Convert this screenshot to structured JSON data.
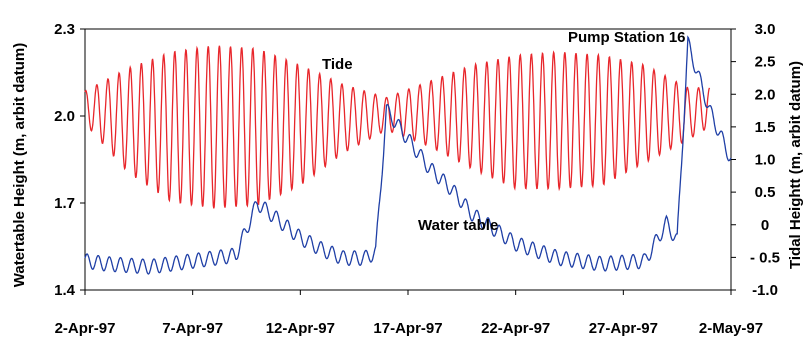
{
  "chart_data": {
    "type": "line",
    "title": "",
    "x_tick_labels": [
      "2-Apr-97",
      "7-Apr-97",
      "12-Apr-97",
      "17-Apr-97",
      "22-Apr-97",
      "27-Apr-97",
      "2-May-97"
    ],
    "xlim": [
      "1997-04-02",
      "1997-05-02"
    ],
    "ylabel_left": "Watertable Height (m, arbit datum)",
    "ylabel_right": "Tidal Heightt (m, arbit datum)",
    "ylim_left": [
      1.4,
      2.3
    ],
    "ylim_right": [
      -1.0,
      3.0
    ],
    "yticks_left": [
      "1.4",
      "1.7",
      "2.0",
      "2.3"
    ],
    "yticks_right": [
      "-1.0",
      "- 0.5",
      "0",
      "0.5",
      "1.0",
      "1.5",
      "2.0",
      "2.5",
      "3.0"
    ],
    "grid": false,
    "legend": "none",
    "annotations": [
      "Tide",
      "Water table",
      "Pump Station 16"
    ],
    "series": [
      {
        "name": "Tide",
        "axis": "right",
        "color": "#e8262b",
        "x": [
          "1997-04-02",
          "1997-04-04",
          "1997-04-06",
          "1997-04-08",
          "1997-04-10",
          "1997-04-12",
          "1997-04-14",
          "1997-04-16",
          "1997-04-18",
          "1997-04-20",
          "1997-04-22",
          "1997-04-24",
          "1997-04-26",
          "1997-04-28",
          "1997-04-30",
          "1997-05-01"
        ],
        "high": [
          2.05,
          2.4,
          2.65,
          2.75,
          2.7,
          2.45,
          2.15,
          1.95,
          2.2,
          2.45,
          2.6,
          2.65,
          2.6,
          2.45,
          2.1,
          2.1
        ],
        "low": [
          1.55,
          0.8,
          0.35,
          0.25,
          0.3,
          0.6,
          1.1,
          1.45,
          1.2,
          0.85,
          0.55,
          0.55,
          0.6,
          0.95,
          1.3,
          1.5
        ]
      },
      {
        "name": "Water table",
        "axis": "left",
        "color": "#1f3fa6",
        "x": [
          "1997-04-02",
          "1997-04-03",
          "1997-04-05",
          "1997-04-07",
          "1997-04-09",
          "1997-04-10",
          "1997-04-11",
          "1997-04-12",
          "1997-04-13",
          "1997-04-14",
          "1997-04-15",
          "1997-04-15.5",
          "1997-04-16",
          "1997-04-17",
          "1997-04-18",
          "1997-04-19",
          "1997-04-20",
          "1997-04-22",
          "1997-04-24",
          "1997-04-26",
          "1997-04-28",
          "1997-04-29",
          "1997-04-29.5",
          "1997-04-30",
          "1997-05-01",
          "1997-05-02"
        ],
        "values": [
          1.5,
          1.49,
          1.48,
          1.5,
          1.52,
          1.7,
          1.64,
          1.58,
          1.54,
          1.51,
          1.51,
          1.53,
          2.02,
          1.92,
          1.82,
          1.75,
          1.66,
          1.56,
          1.51,
          1.49,
          1.5,
          1.63,
          1.57,
          2.25,
          2.02,
          1.85
        ]
      }
    ]
  }
}
